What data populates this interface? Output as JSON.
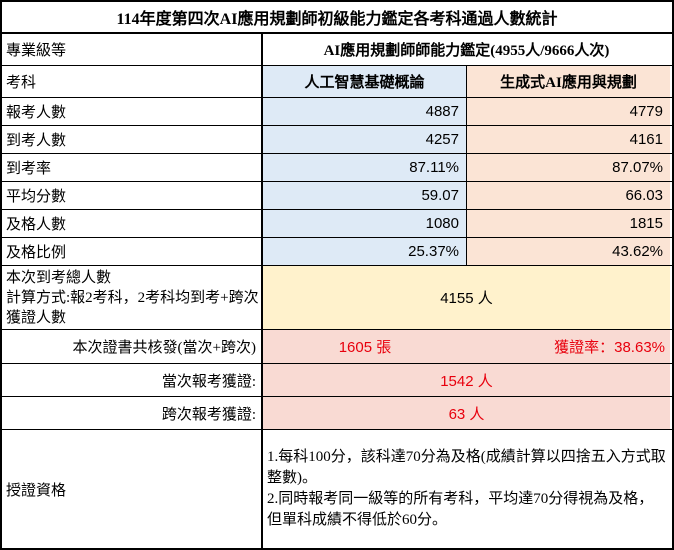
{
  "title": "114年度第四次AI應用規劃師初級能力鑑定各考科通過人數統計",
  "colors": {
    "column_a_bg": "#DEEAF6",
    "column_b_bg": "#FBE4D5",
    "total_bg": "#FFF2CC",
    "cert_bg": "#F9DAD3",
    "red_text": "#E8000D"
  },
  "level_row": {
    "label": "專業級等",
    "value": "AI應用規劃師師能力鑑定(4955人/9666人次)"
  },
  "subject_row": {
    "label": "考科",
    "col_a": "人工智慧基礎概論",
    "col_b": "生成式AI應用與規劃"
  },
  "stat_rows": [
    {
      "label": "報考人數",
      "a": "4887",
      "b": "4779"
    },
    {
      "label": "到考人數",
      "a": "4257",
      "b": "4161"
    },
    {
      "label": "到考率",
      "a": "87.11%",
      "b": "87.07%"
    },
    {
      "label": "平均分數",
      "a": "59.07",
      "b": "66.03"
    },
    {
      "label": "及格人數",
      "a": "1080",
      "b": "1815"
    },
    {
      "label": "及格比例",
      "a": "25.37%",
      "b": "43.62%"
    }
  ],
  "total_row": {
    "label_line1": "本次到考總人數",
    "label_line2": "計算方式:報2考科，2考科均到考+跨次獲證人數",
    "value": "4155 人"
  },
  "cert_row": {
    "label": "本次證書共核發(當次+跨次)",
    "value": "1605 張",
    "rate": "獲證率：38.63%"
  },
  "current_row": {
    "label": "當次報考獲證:",
    "value": "1542 人"
  },
  "cross_row": {
    "label": "跨次報考獲證:",
    "value": "63 人"
  },
  "qualification_row": {
    "label": "授證資格",
    "rule1": "1.每科100分，該科達70分為及格(成績計算以四捨五入方式取整數)。",
    "rule2": "2.同時報考同一級等的所有考科，平均達70分得視為及格，但單科成績不得低於60分。"
  }
}
